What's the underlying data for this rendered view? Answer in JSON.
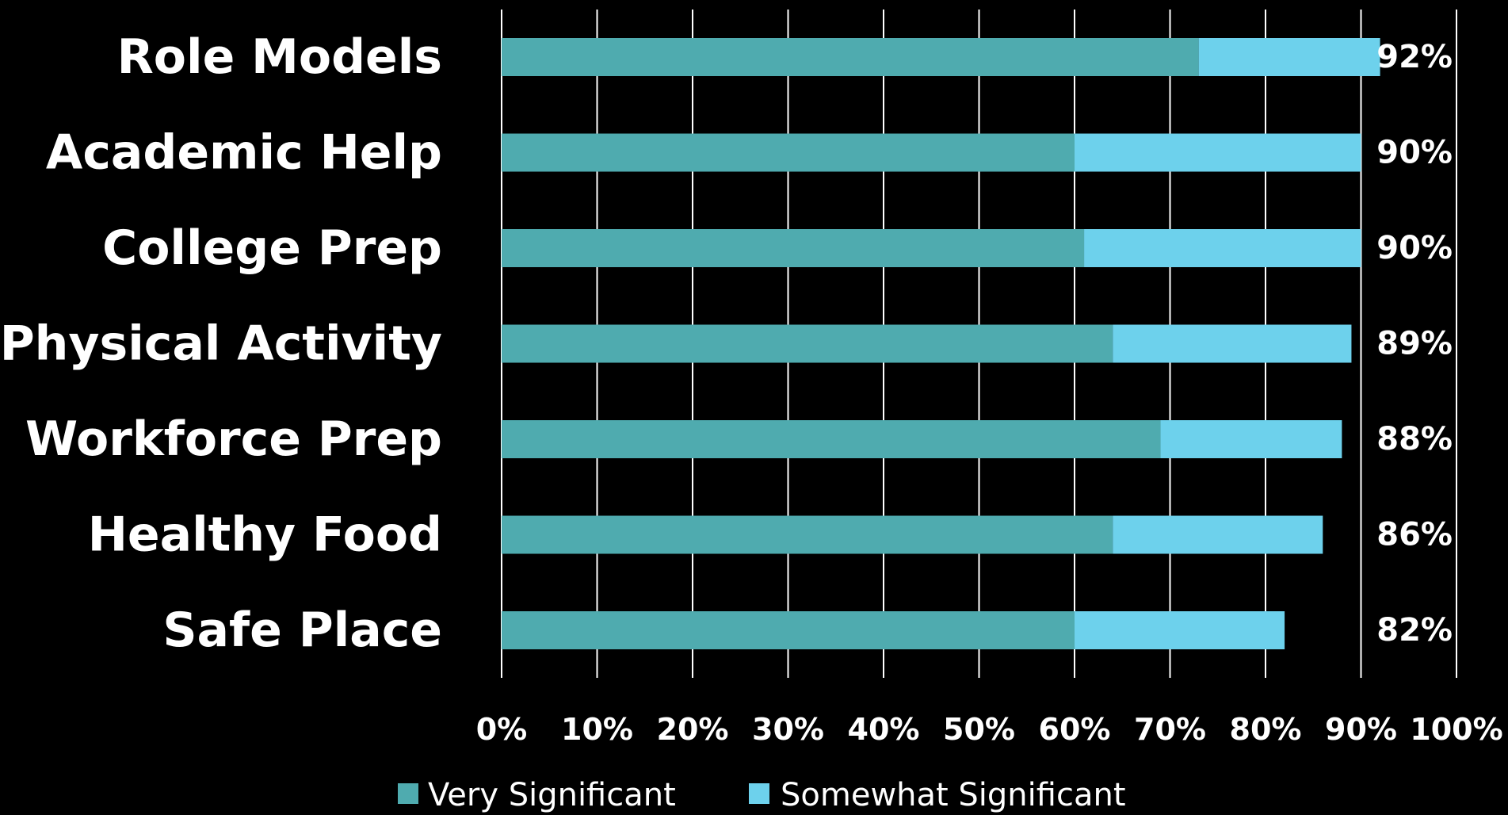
{
  "chart_data": {
    "type": "bar",
    "orientation": "horizontal",
    "stacked": true,
    "categories": [
      "Role Models",
      "Academic Help",
      "College Prep",
      "Physical Activity",
      "Workforce Prep",
      "Healthy Food",
      "Safe Place"
    ],
    "series": [
      {
        "name": "Very Significant",
        "color": "#4fabaf",
        "values": [
          73,
          60,
          61,
          64,
          69,
          64,
          60
        ]
      },
      {
        "name": "Somewhat Significant",
        "color": "#6dd1ec",
        "values": [
          19,
          30,
          29,
          25,
          19,
          22,
          22
        ]
      }
    ],
    "totals": [
      "92%",
      "90%",
      "90%",
      "89%",
      "88%",
      "86%",
      "82%"
    ],
    "xlim": [
      0,
      100
    ],
    "x_ticks": [
      "0%",
      "10%",
      "20%",
      "30%",
      "40%",
      "50%",
      "60%",
      "70%",
      "80%",
      "90%",
      "100%"
    ],
    "title": "",
    "xlabel": "",
    "ylabel": "",
    "grid": "vertical",
    "legend_position": "bottom",
    "background": "#000000"
  }
}
